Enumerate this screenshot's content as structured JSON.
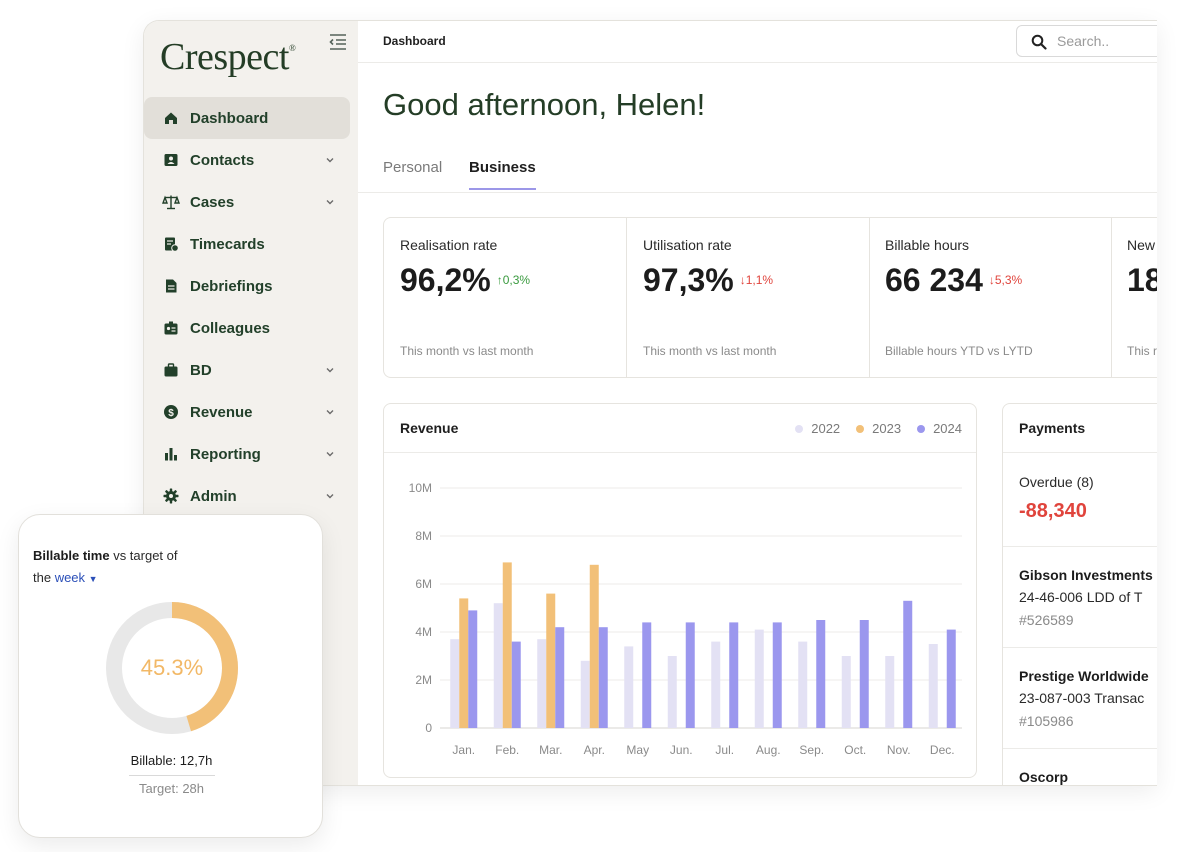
{
  "brand": {
    "name": "Crespect",
    "mark": "®"
  },
  "sidebar": {
    "items": [
      {
        "label": "Dashboard",
        "icon": "home-icon",
        "active": true,
        "has_chevron": false
      },
      {
        "label": "Contacts",
        "icon": "contacts-icon",
        "active": false,
        "has_chevron": true
      },
      {
        "label": "Cases",
        "icon": "scales-icon",
        "active": false,
        "has_chevron": true
      },
      {
        "label": "Timecards",
        "icon": "timecard-icon",
        "active": false,
        "has_chevron": false
      },
      {
        "label": "Debriefings",
        "icon": "document-icon",
        "active": false,
        "has_chevron": false
      },
      {
        "label": "Colleagues",
        "icon": "badge-icon",
        "active": false,
        "has_chevron": false
      },
      {
        "label": "BD",
        "icon": "briefcase-icon",
        "active": false,
        "has_chevron": true
      },
      {
        "label": "Revenue",
        "icon": "dollar-icon",
        "active": false,
        "has_chevron": true
      },
      {
        "label": "Reporting",
        "icon": "bar-chart-icon",
        "active": false,
        "has_chevron": true
      },
      {
        "label": "Admin",
        "icon": "gear-icon",
        "active": false,
        "has_chevron": true
      }
    ]
  },
  "header": {
    "breadcrumb": "Dashboard",
    "search_placeholder": "Search.."
  },
  "greeting": "Good afternoon, Helen!",
  "tabs": [
    {
      "label": "Personal",
      "active": false
    },
    {
      "label": "Business",
      "active": true
    }
  ],
  "kpis": [
    {
      "label": "Realisation rate",
      "value": "96,2%",
      "delta": "↑0,3%",
      "direction": "up",
      "sub": "This month vs last month"
    },
    {
      "label": "Utilisation rate",
      "value": "97,3%",
      "delta": "↓1,1%",
      "direction": "down",
      "sub": "This month vs last month"
    },
    {
      "label": "Billable hours",
      "value": "66 234",
      "delta": "↓5,3%",
      "direction": "down",
      "sub": "Billable hours YTD vs LYTD"
    },
    {
      "label": "New",
      "value": "18",
      "delta": "",
      "direction": "",
      "sub": "This r"
    }
  ],
  "revenue": {
    "title": "Revenue"
  },
  "chart_data": {
    "type": "bar",
    "title": "Revenue",
    "categories": [
      "Jan.",
      "Feb.",
      "Mar.",
      "Apr.",
      "May",
      "Jun.",
      "Jul.",
      "Aug.",
      "Sep.",
      "Oct.",
      "Nov.",
      "Dec."
    ],
    "series": [
      {
        "name": "2022",
        "color": "#e3e1f4",
        "values": [
          3.7,
          5.2,
          3.7,
          2.8,
          3.4,
          3.0,
          3.6,
          4.1,
          3.6,
          3.0,
          3.0,
          3.5
        ]
      },
      {
        "name": "2023",
        "color": "#f2c078",
        "values": [
          5.4,
          6.9,
          5.6,
          6.8,
          null,
          null,
          null,
          null,
          null,
          null,
          null,
          null
        ]
      },
      {
        "name": "2024",
        "color": "#9b97ee",
        "values": [
          4.9,
          3.6,
          4.2,
          4.2,
          4.4,
          4.4,
          4.4,
          4.4,
          4.5,
          4.5,
          5.3,
          4.1
        ]
      }
    ],
    "yticks": [
      "0",
      "2M",
      "4M",
      "6M",
      "8M",
      "10M"
    ],
    "ylim": [
      0,
      10
    ],
    "grid": true,
    "legend_position": "top-right"
  },
  "payments": {
    "title": "Payments",
    "overdue_label": "Overdue (8)",
    "overdue_value": "-88,340",
    "entries": [
      {
        "name": "Gibson Investments",
        "line": "24-46-006 LDD of T",
        "ref": "#526589"
      },
      {
        "name": "Prestige Worldwide",
        "line": "23-087-003 Transac",
        "ref": "#105986"
      },
      {
        "name": "Oscorp",
        "line": "",
        "ref": ""
      }
    ]
  },
  "widget": {
    "title_bold": "Billable time",
    "title_rest_1": " vs target of",
    "title_rest_2": "the ",
    "period": "week",
    "percent_label": "45.3%",
    "percent": 0.453,
    "billable": "Billable: 12,7h",
    "target": "Target: 28h",
    "colors": {
      "progress": "#f2c078",
      "track": "#e8e8e8"
    }
  }
}
